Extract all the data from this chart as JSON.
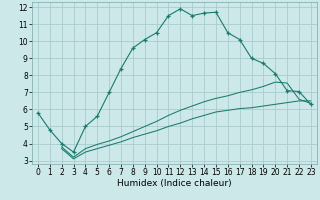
{
  "xlabel": "Humidex (Indice chaleur)",
  "background_color": "#cce8e8",
  "grid_color": "#aacccc",
  "line_color": "#1a7a6e",
  "xlim": [
    -0.5,
    23.5
  ],
  "ylim": [
    2.8,
    12.3
  ],
  "xticks": [
    0,
    1,
    2,
    3,
    4,
    5,
    6,
    7,
    8,
    9,
    10,
    11,
    12,
    13,
    14,
    15,
    16,
    17,
    18,
    19,
    20,
    21,
    22,
    23
  ],
  "yticks": [
    3,
    4,
    5,
    6,
    7,
    8,
    9,
    10,
    11,
    12
  ],
  "line1_x": [
    0,
    1,
    2,
    3,
    4,
    5,
    6,
    7,
    8,
    9,
    10,
    11,
    12,
    13,
    14,
    15,
    16,
    17,
    18,
    19,
    20,
    21,
    22,
    23
  ],
  "line1_y": [
    5.8,
    4.8,
    4.0,
    3.5,
    5.0,
    5.6,
    7.0,
    8.4,
    9.6,
    10.1,
    10.5,
    11.5,
    11.9,
    11.5,
    11.65,
    11.7,
    10.5,
    10.1,
    9.0,
    8.7,
    8.1,
    7.1,
    7.05,
    6.3
  ],
  "line3_x": [
    2,
    3,
    4,
    5,
    6,
    7,
    8,
    9,
    10,
    11,
    12,
    13,
    14,
    15,
    16,
    17,
    18,
    19,
    20,
    21,
    22,
    23
  ],
  "line3_y": [
    3.7,
    3.1,
    3.5,
    3.7,
    3.9,
    4.1,
    4.35,
    4.55,
    4.75,
    5.0,
    5.2,
    5.45,
    5.65,
    5.85,
    5.95,
    6.05,
    6.1,
    6.2,
    6.3,
    6.4,
    6.5,
    6.5
  ],
  "line4_x": [
    2,
    3,
    4,
    5,
    6,
    7,
    8,
    9,
    10,
    11,
    12,
    13,
    14,
    15,
    16,
    17,
    18,
    19,
    20,
    21,
    22,
    23
  ],
  "line4_y": [
    3.8,
    3.2,
    3.7,
    3.95,
    4.15,
    4.4,
    4.7,
    5.0,
    5.3,
    5.65,
    5.95,
    6.2,
    6.45,
    6.65,
    6.8,
    7.0,
    7.15,
    7.35,
    7.6,
    7.55,
    6.6,
    6.35
  ],
  "tick_fontsize": 5.5,
  "xlabel_fontsize": 6.5
}
